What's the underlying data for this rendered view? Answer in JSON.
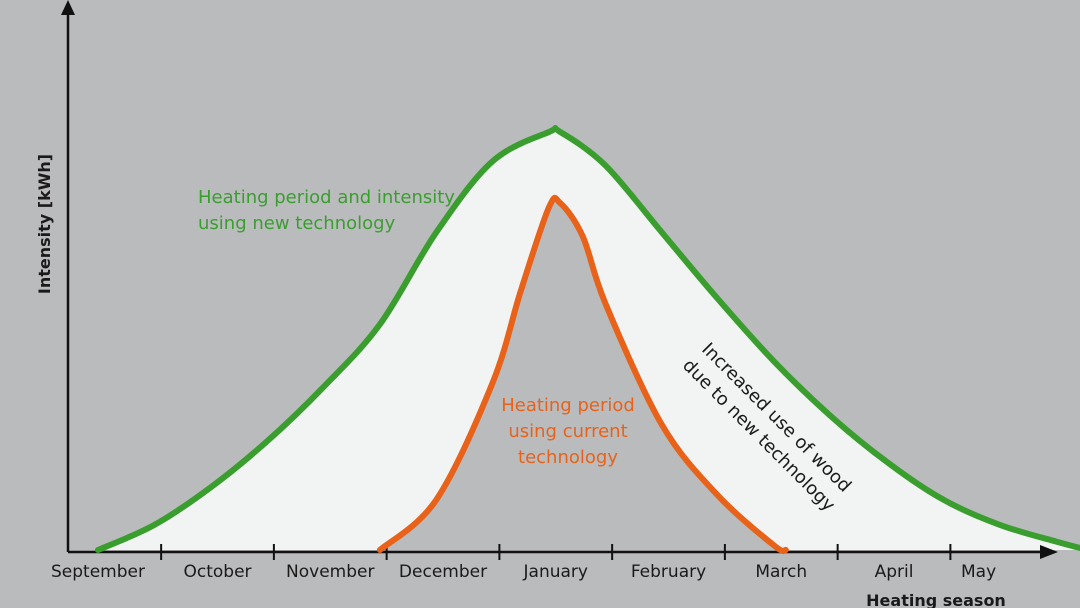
{
  "chart_data": {
    "type": "area",
    "xlabel": "Heating season",
    "ylabel": "Intensity [kWh]",
    "categories": [
      "September",
      "October",
      "November",
      "December",
      "January",
      "February",
      "March",
      "April",
      "May"
    ],
    "x_unit": "months from start of September",
    "y_unit": "relative intensity (0 to 1)",
    "series": [
      {
        "name": "Heating period and intensity using new technology",
        "color": "#3a9e2f",
        "x": [
          0.0,
          0.5,
          1.0,
          1.5,
          2.0,
          2.5,
          3.0,
          3.5,
          4.0,
          4.1,
          4.5,
          5.0,
          5.5,
          6.0,
          6.5,
          7.0,
          7.5,
          8.0,
          8.5,
          8.78
        ],
        "y": [
          0.0,
          0.06,
          0.15,
          0.26,
          0.39,
          0.54,
          0.76,
          0.93,
          1.0,
          1.0,
          0.92,
          0.76,
          0.6,
          0.45,
          0.32,
          0.21,
          0.12,
          0.06,
          0.02,
          0.0
        ]
      },
      {
        "name": "Heating period using current technology",
        "color": "#e8621a",
        "x": [
          2.5,
          3.0,
          3.5,
          3.75,
          4.0,
          4.1,
          4.3,
          4.5,
          5.0,
          5.5,
          6.0,
          6.1
        ],
        "y": [
          0.0,
          0.12,
          0.4,
          0.62,
          0.82,
          0.83,
          0.75,
          0.59,
          0.3,
          0.13,
          0.01,
          0.0
        ]
      }
    ],
    "annotations": [
      {
        "text_lines": [
          "Heating period and intensity",
          "using new technology"
        ],
        "color": "#3a9e2f"
      },
      {
        "text_lines": [
          "Heating period",
          "using current",
          "technology"
        ],
        "color": "#e8621a"
      },
      {
        "text_lines": [
          "Increased use of wood",
          "due to new technology"
        ],
        "color": "#1a1a1a"
      }
    ],
    "colors": {
      "background": "#babbbd",
      "fill": "#f2f3f3",
      "axis": "#111111"
    },
    "grid": false,
    "legend": "none"
  }
}
